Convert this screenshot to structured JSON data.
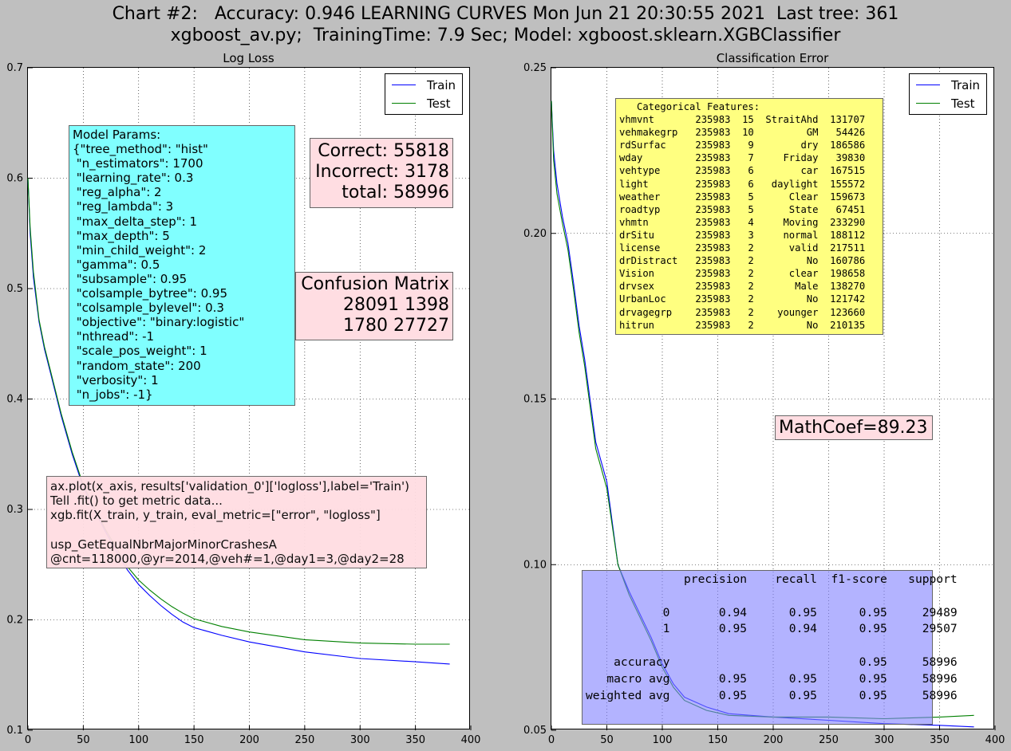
{
  "header": {
    "line1": "Chart #2:   Accuracy: 0.946 LEARNING CURVES Mon Jun 21 20:30:55 2021  Last tree: 361",
    "line2": "xgboost_av.py;  TrainingTime: 7.9 Sec; Model: xgboost.sklearn.XGBClassifier"
  },
  "colors": {
    "train": "#0000ff",
    "test": "#008000",
    "params_box": "#80ffff",
    "pink_box": "#ffdde2",
    "features_box": "#ffff80",
    "report_box": "#b0b0ff",
    "background": "#bfbfbf"
  },
  "left_panel": {
    "params_text": "Model Params:\n{\"tree_method\": \"hist\"\n \"n_estimators\": 1700\n \"learning_rate\": 0.3\n \"reg_alpha\": 2\n \"reg_lambda\": 3\n \"max_delta_step\": 1\n \"max_depth\": 5\n \"min_child_weight\": 2\n \"gamma\": 0.5\n \"subsample\": 0.95\n \"colsample_bytree\": 0.95\n \"colsample_bylevel\": 0.3\n \"objective\": \"binary:logistic\"\n \"nthread\": -1\n \"scale_pos_weight\": 1\n \"random_state\": 200\n \"verbosity\": 1\n \"n_jobs\": -1}",
    "counts_text": "Correct: 55818\nIncorrect: 3178\ntotal: 58996",
    "confusion_text": "Confusion Matrix\n28091 1398\n1780 27727",
    "code_text": "ax.plot(x_axis, results['validation_0']['logloss'],label='Train')\nTell .fit() to get metric data...\nxgb.fit(X_train, y_train, eval_metric=[\"error\", \"logloss\"]\n\nusp_GetEqualNbrMajorMinorCrashesA\n@cnt=118000,@yr=2014,@veh#=1,@day1=3,@day2=28"
  },
  "right_panel": {
    "features_text": "   Categorical Features:\nvhmvnt       235983  15  StraitAhd  131707\nvehmakegrp   235983  10         GM   54426\nrdSurfac     235983   9        dry  186586\nwday         235983   7     Friday   39830\nvehtype      235983   6        car  167515\nlight        235983   6   daylight  155572\nweather      235983   5      Clear  159673\nroadtyp      235983   5      State   67451\nvhmtn        235983   4     Moving  233290\ndrSitu       235983   3     normal  188112\nlicense      235983   2      valid  217511\ndrDistract   235983   2         No  160786\nVision       235983   2      clear  198658\ndrvsex       235983   2       Male  138270\nUrbanLoc     235983   2         No  121742\ndrvagegrp    235983   2    younger  123660\nhitrun       235983   2         No  210135",
    "mathcoef_text": "MathCoef=89.23",
    "report_text": "              precision    recall  f1-score   support\n\n           0       0.94      0.95      0.95     29489\n           1       0.95      0.94      0.95     29507\n\n    accuracy                           0.95     58996\n   macro avg       0.95      0.95      0.95     58996\nweighted avg       0.95      0.95      0.95     58996"
  },
  "chart_data": [
    {
      "type": "line",
      "title": "Log Loss",
      "xlabel": "",
      "ylabel": "",
      "xlim": [
        0,
        400
      ],
      "ylim": [
        0.1,
        0.7
      ],
      "xticks": [
        "0",
        "50",
        "100",
        "150",
        "200",
        "250",
        "300",
        "350",
        "400"
      ],
      "yticks": [
        "0.1",
        "0.2",
        "0.3",
        "0.4",
        "0.5",
        "0.6",
        "0.7"
      ],
      "grid": true,
      "legend": "top-right",
      "x": [
        0,
        2,
        5,
        10,
        15,
        20,
        25,
        30,
        40,
        50,
        60,
        70,
        80,
        90,
        100,
        110,
        120,
        130,
        140,
        150,
        175,
        200,
        250,
        300,
        350,
        381
      ],
      "series": [
        {
          "name": "Train",
          "values": [
            0.6,
            0.55,
            0.51,
            0.47,
            0.445,
            0.425,
            0.405,
            0.385,
            0.35,
            0.32,
            0.3,
            0.28,
            0.262,
            0.245,
            0.232,
            0.222,
            0.213,
            0.205,
            0.198,
            0.193,
            0.186,
            0.18,
            0.171,
            0.165,
            0.162,
            0.16
          ]
        },
        {
          "name": "Test",
          "values": [
            0.6,
            0.555,
            0.515,
            0.472,
            0.447,
            0.427,
            0.407,
            0.387,
            0.352,
            0.322,
            0.302,
            0.282,
            0.265,
            0.248,
            0.236,
            0.227,
            0.219,
            0.212,
            0.206,
            0.201,
            0.194,
            0.189,
            0.182,
            0.179,
            0.178,
            0.178
          ]
        }
      ]
    },
    {
      "type": "line",
      "title": "Classification Error",
      "xlabel": "",
      "ylabel": "",
      "xlim": [
        0,
        400
      ],
      "ylim": [
        0.05,
        0.25
      ],
      "xticks": [
        "0",
        "50",
        "100",
        "150",
        "200",
        "250",
        "300",
        "350",
        "400"
      ],
      "yticks": [
        "0.05",
        "0.10",
        "0.15",
        "0.20",
        "0.25"
      ],
      "grid": true,
      "legend": "top-right",
      "x": [
        0,
        2,
        5,
        10,
        15,
        20,
        25,
        30,
        40,
        50,
        60,
        70,
        80,
        90,
        100,
        110,
        120,
        140,
        160,
        200,
        250,
        300,
        350,
        381
      ],
      "series": [
        {
          "name": "Train",
          "values": [
            0.24,
            0.225,
            0.215,
            0.205,
            0.197,
            0.185,
            0.172,
            0.162,
            0.137,
            0.125,
            0.1,
            0.092,
            0.085,
            0.078,
            0.07,
            0.064,
            0.06,
            0.057,
            0.055,
            0.054,
            0.053,
            0.052,
            0.0515,
            0.051
          ]
        },
        {
          "name": "Test",
          "values": [
            0.24,
            0.222,
            0.212,
            0.203,
            0.195,
            0.183,
            0.17,
            0.16,
            0.135,
            0.123,
            0.1,
            0.091,
            0.084,
            0.077,
            0.069,
            0.063,
            0.059,
            0.056,
            0.0545,
            0.054,
            0.054,
            0.0535,
            0.054,
            0.0545
          ]
        }
      ]
    }
  ]
}
